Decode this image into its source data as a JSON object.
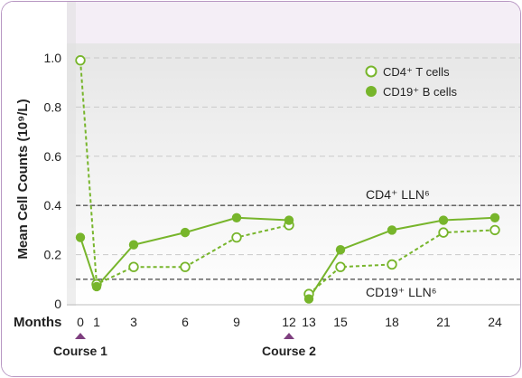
{
  "chart_data": {
    "type": "line",
    "ylabel": "Mean Cell Counts (10⁹/L)",
    "xlabel": "Months",
    "ylim": [
      0,
      1.0
    ],
    "yticks": [
      0,
      0.2,
      0.4,
      0.6,
      0.8,
      1.0
    ],
    "ytick_labels": [
      "0",
      "0.2",
      "0.4",
      "0.6",
      "0.8",
      "1.0"
    ],
    "xticks": [
      0,
      1,
      3,
      6,
      9,
      12,
      13,
      15,
      18,
      21,
      24
    ],
    "xtick_labels": [
      "0",
      "1",
      "3",
      "6",
      "9",
      "12",
      "13",
      "15",
      "18",
      "21",
      "24"
    ],
    "grid": "horizontal dashed",
    "legend_position": "top-right",
    "series": [
      {
        "name": "CD4⁺ T cells",
        "style": "dashed line, open circles",
        "segments": [
          {
            "x": [
              0,
              1,
              3,
              6,
              9,
              12
            ],
            "y": [
              0.99,
              0.08,
              0.15,
              0.15,
              0.27,
              0.32
            ]
          },
          {
            "x": [
              13,
              15,
              18,
              21,
              24
            ],
            "y": [
              0.04,
              0.15,
              0.16,
              0.29,
              0.3
            ]
          }
        ]
      },
      {
        "name": "CD19⁺ B cells",
        "style": "solid line, filled circles",
        "segments": [
          {
            "x": [
              0,
              1,
              3,
              6,
              9,
              12
            ],
            "y": [
              0.27,
              0.07,
              0.24,
              0.29,
              0.35,
              0.34
            ]
          },
          {
            "x": [
              13,
              15,
              18,
              21,
              24
            ],
            "y": [
              0.02,
              0.22,
              0.3,
              0.34,
              0.35
            ]
          }
        ]
      }
    ],
    "reference_lines": [
      {
        "label": "CD4⁺ LLN⁶",
        "y": 0.4
      },
      {
        "label": "CD19⁺ LLN⁶",
        "y": 0.1
      }
    ],
    "annotations": [
      {
        "label": "Course 1",
        "x": 0
      },
      {
        "label": "Course 2",
        "x": 12
      }
    ]
  },
  "colors": {
    "series": "#77b52b",
    "border": "#b796c2",
    "header_band": "#f4eef6",
    "shade_gray": "#e5e5e5",
    "marker_purple": "#7e3f7f",
    "reference_line": "#555555"
  }
}
